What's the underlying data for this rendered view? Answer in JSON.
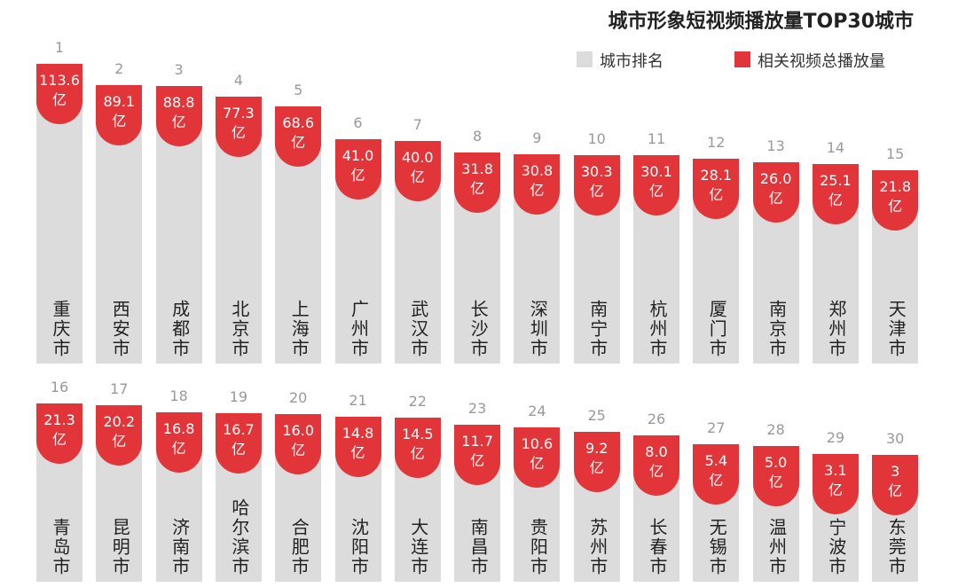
{
  "chart_data": {
    "type": "bar",
    "title": "城市形象短视频播放量TOP30城市",
    "rank_legend": {
      "name": "城市排名",
      "color": "#dcdcdc"
    },
    "categories": [
      "重庆市",
      "西安市",
      "成都市",
      "北京市",
      "上海市",
      "广州市",
      "武汉市",
      "长沙市",
      "深圳市",
      "南宁市",
      "杭州市",
      "厦门市",
      "南京市",
      "郑州市",
      "天津市",
      "青岛市",
      "昆明市",
      "济南市",
      "哈尔滨市",
      "合肥市",
      "沈阳市",
      "大连市",
      "南昌市",
      "贵阳市",
      "苏州市",
      "长春市",
      "无锡市",
      "温州市",
      "宁波市",
      "东莞市"
    ],
    "ranks": [
      1,
      2,
      3,
      4,
      5,
      6,
      7,
      8,
      9,
      10,
      11,
      12,
      13,
      14,
      15,
      16,
      17,
      18,
      19,
      20,
      21,
      22,
      23,
      24,
      25,
      26,
      27,
      28,
      29,
      30
    ],
    "series": [
      {
        "name": "相关视频总播放量",
        "color": "#e2353a",
        "values": [
          113.6,
          89.1,
          88.8,
          77.3,
          68.6,
          41.0,
          40.0,
          31.8,
          30.8,
          30.3,
          30.1,
          28.1,
          26.0,
          25.1,
          21.8,
          21.3,
          20.2,
          16.8,
          16.7,
          16.0,
          14.8,
          14.5,
          11.7,
          10.6,
          9.2,
          8.0,
          5.4,
          5.0,
          3.1,
          3
        ],
        "value_labels": [
          "113.6\n亿",
          "89.1\n亿",
          "88.8\n亿",
          "77.3\n亿",
          "68.6\n亿",
          "41.0\n亿",
          "40.0\n亿",
          "31.8\n亿",
          "30.8\n亿",
          "30.3\n亿",
          "30.1\n亿",
          "28.1\n亿",
          "26.0\n亿",
          "25.1\n亿",
          "21.8\n亿",
          "21.3\n亿",
          "20.2\n亿",
          "16.8\n亿",
          "16.7\n亿",
          "16.0\n亿",
          "14.8\n亿",
          "14.5\n亿",
          "11.7\n亿",
          "10.6\n亿",
          "9.2\n亿",
          "8.0\n亿",
          "5.4\n亿",
          "5.0\n亿",
          "3.1\n亿",
          "3\n亿"
        ]
      }
    ]
  }
}
